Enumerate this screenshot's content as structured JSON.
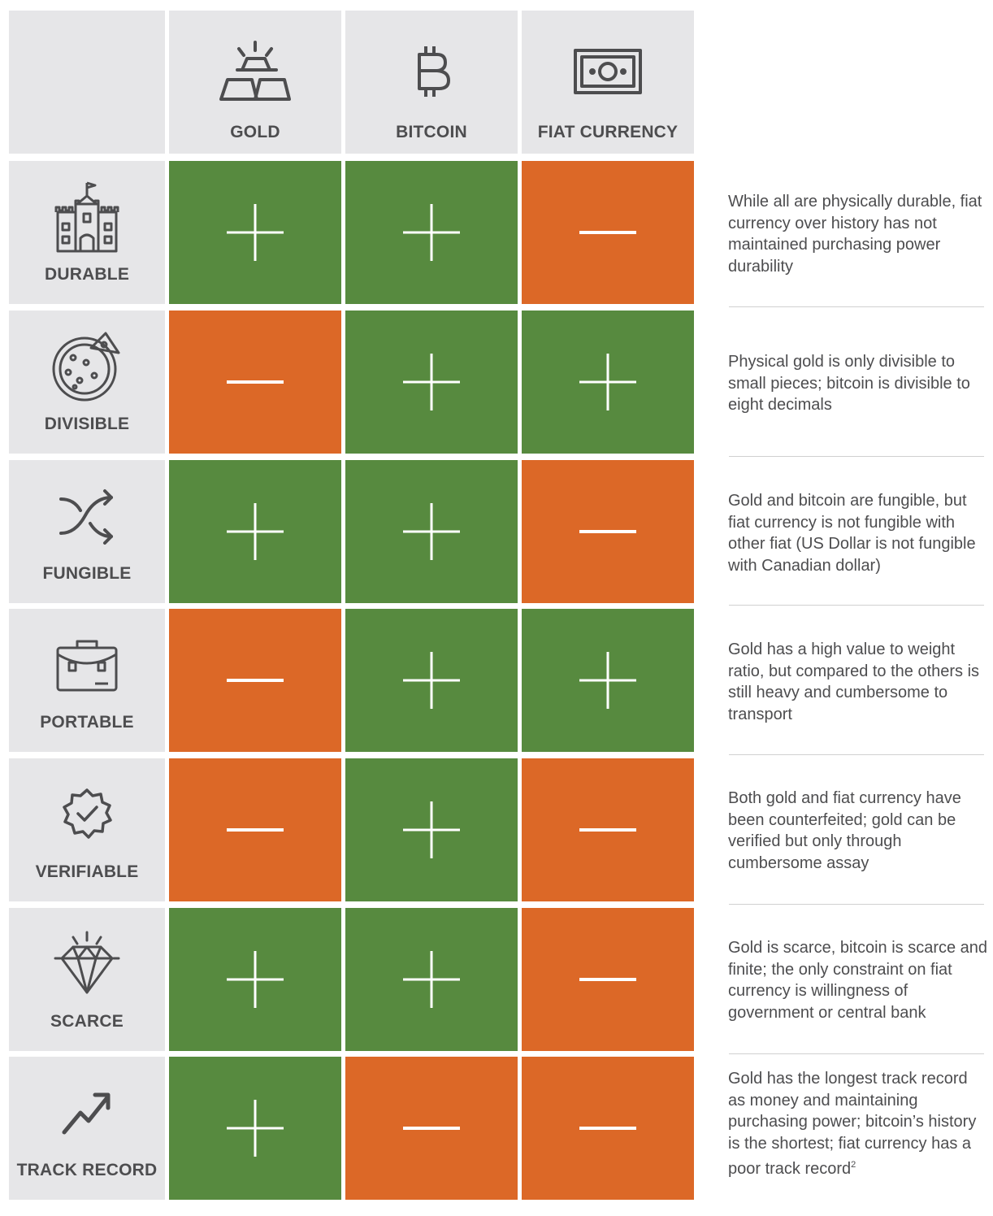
{
  "colors": {
    "positive": "#578a3f",
    "negative": "#dc6827",
    "header_bg": "#e6e6e8",
    "text": "#4d4d4f"
  },
  "columns": [
    {
      "label": "GOLD",
      "icon": "gold-bars-icon"
    },
    {
      "label": "BITCOIN",
      "icon": "bitcoin-icon"
    },
    {
      "label": "FIAT CURRENCY",
      "icon": "banknote-icon"
    }
  ],
  "rows": [
    {
      "label": "DURABLE",
      "icon": "castle-icon",
      "values": [
        "+",
        "+",
        "-"
      ],
      "note": "While all are physically durable, fiat currency over history has not maintained purchasing power durability"
    },
    {
      "label": "DIVISIBLE",
      "icon": "pizza-icon",
      "values": [
        "-",
        "+",
        "+"
      ],
      "note": "Physical gold is only divisible to small pieces; bitcoin is divisible to eight decimals"
    },
    {
      "label": "FUNGIBLE",
      "icon": "shuffle-icon",
      "values": [
        "+",
        "+",
        "-"
      ],
      "note": "Gold and bitcoin are fungible, but fiat currency is not fungible with other fiat (US Dollar is not fungible with Canadian dollar)"
    },
    {
      "label": "PORTABLE",
      "icon": "briefcase-icon",
      "values": [
        "-",
        "+",
        "+"
      ],
      "note": "Gold has a high value to weight ratio, but compared to the others is still heavy and cumbersome to transport"
    },
    {
      "label": "VERIFIABLE",
      "icon": "verified-badge-icon",
      "values": [
        "-",
        "+",
        "-"
      ],
      "note": "Both gold and fiat currency have been counterfeited; gold can be verified but only through cumbersome assay"
    },
    {
      "label": "SCARCE",
      "icon": "diamond-icon",
      "values": [
        "+",
        "+",
        "-"
      ],
      "note": "Gold is scarce, bitcoin is scarce and finite; the only constraint on fiat currency is willingness of government or central bank"
    },
    {
      "label": "TRACK RECORD",
      "icon": "trend-up-icon",
      "values": [
        "+",
        "-",
        "-"
      ],
      "note": "Gold has the longest track record as money and maintaining purchasing power; bitcoin’s history is the shortest; fiat currency has a poor track record",
      "note_sup": "2"
    }
  ]
}
